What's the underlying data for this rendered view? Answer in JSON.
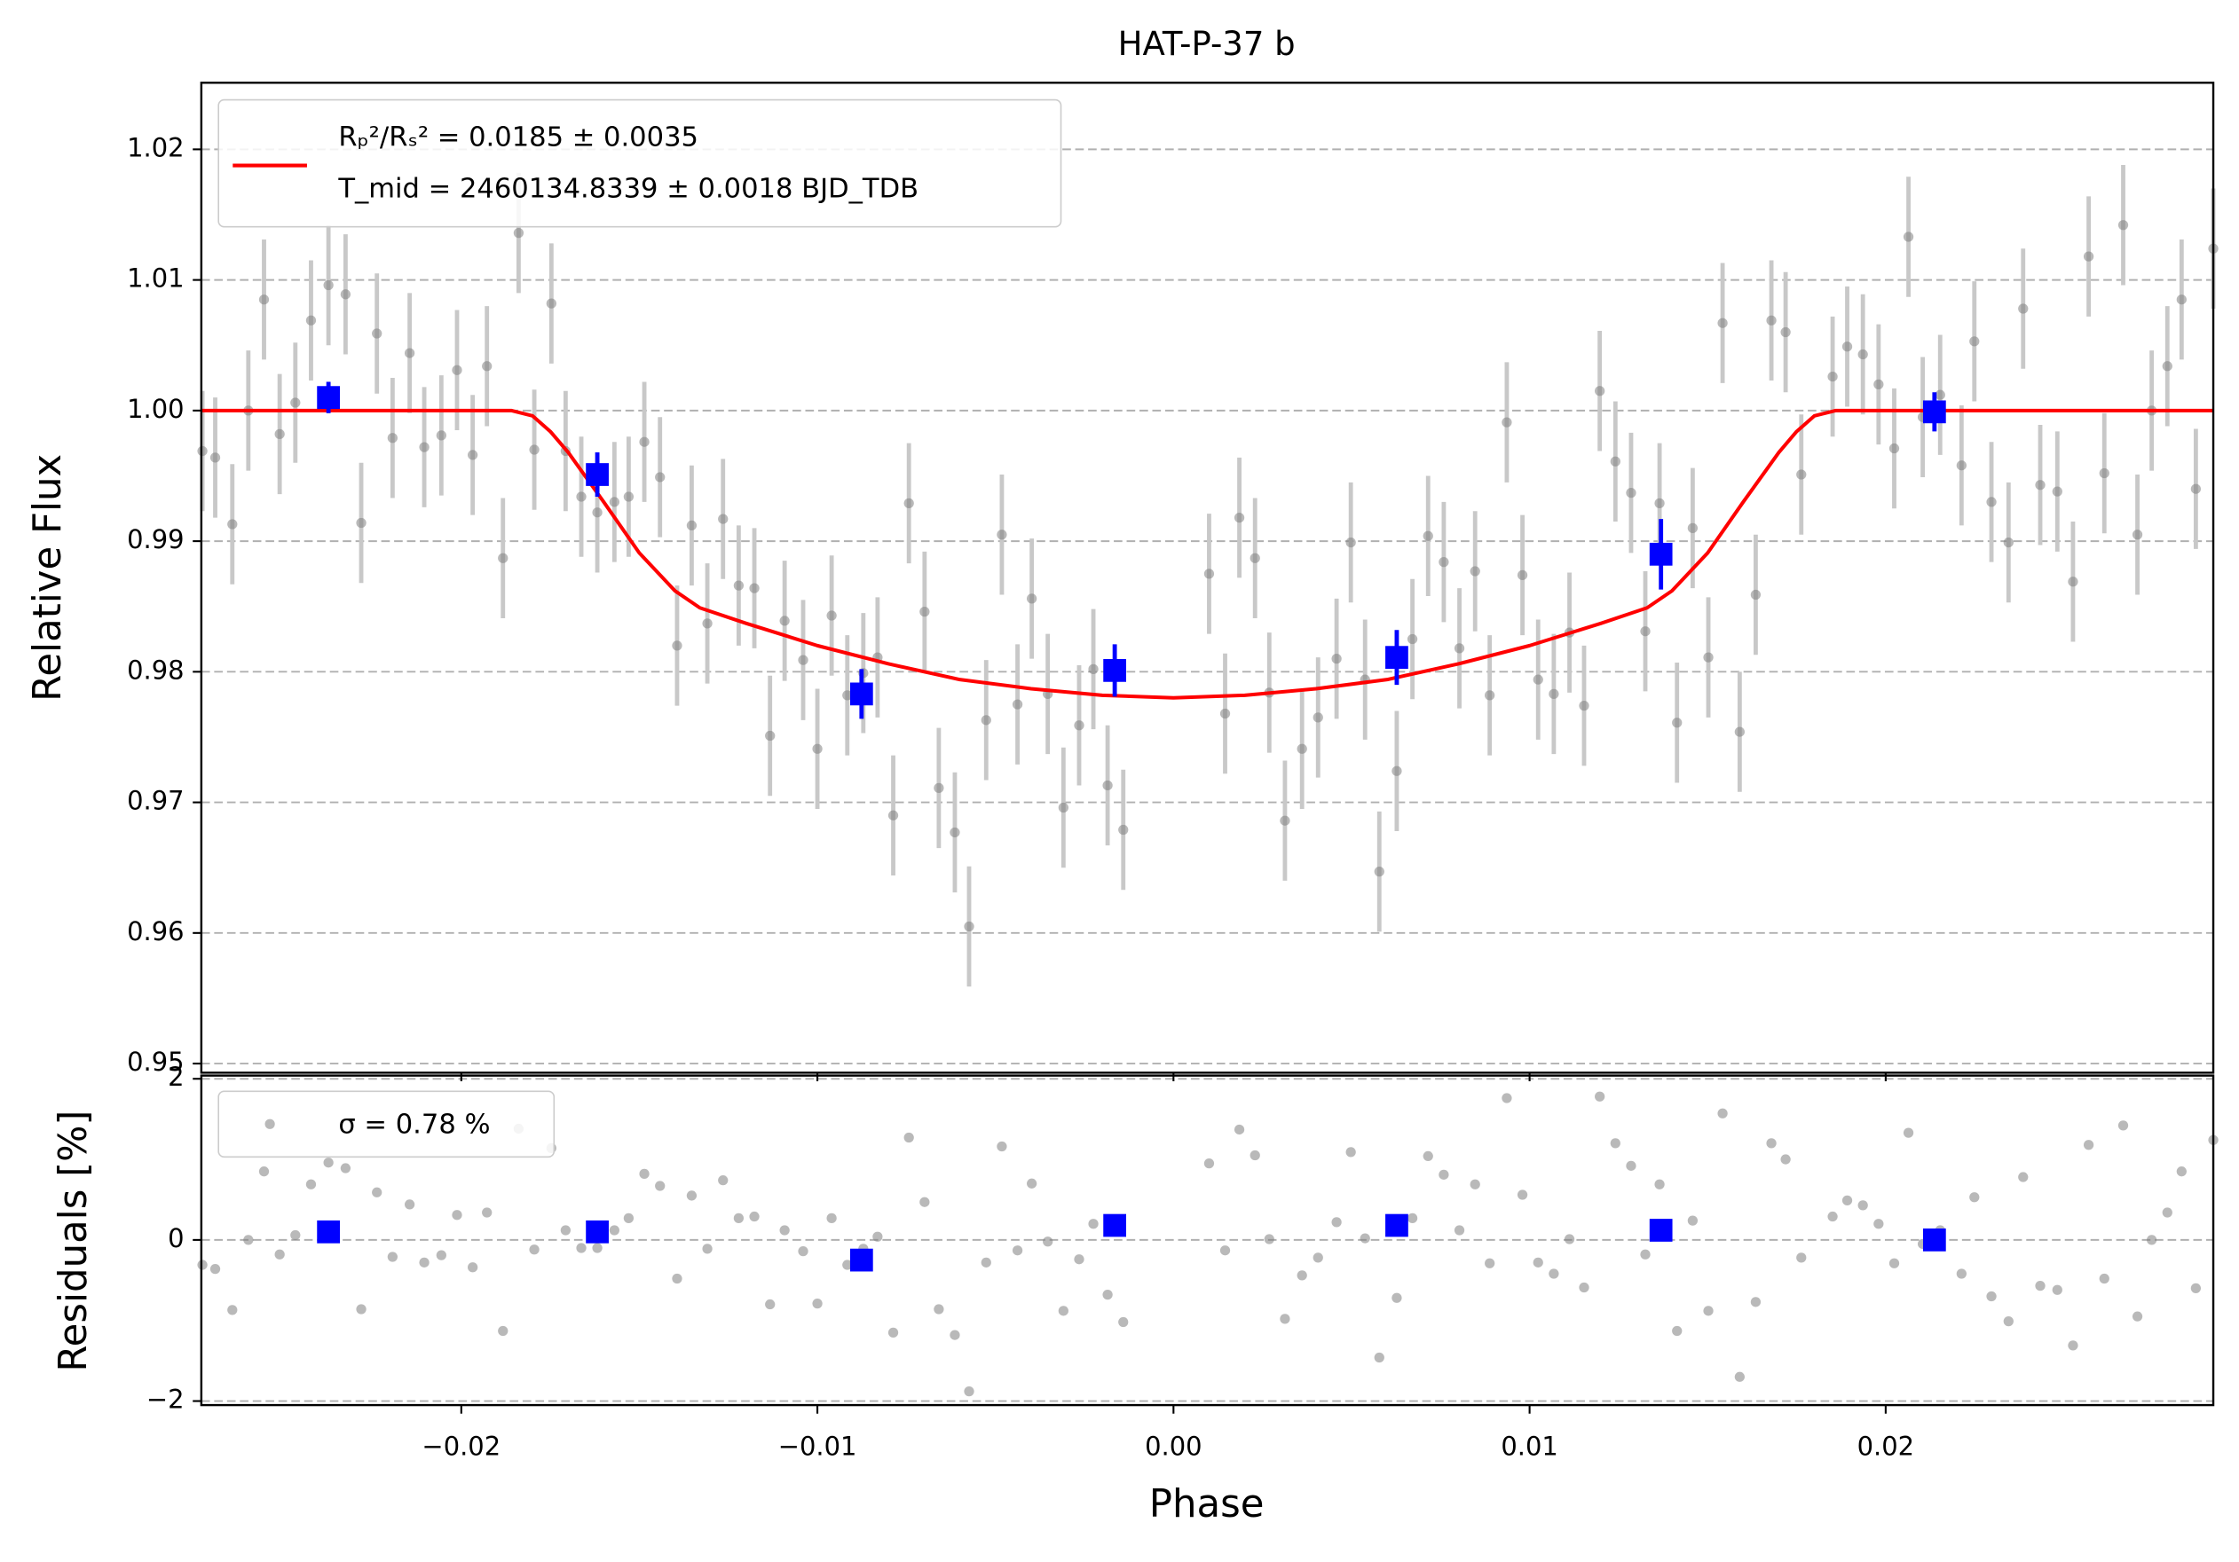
{
  "chart_data": [
    {
      "type": "scatter",
      "title": "HAT-P-37 b",
      "y_label": "Relative Flux",
      "ylim": [
        0.9493,
        1.0251
      ],
      "yticks": [
        0.95,
        0.96,
        0.97,
        0.98,
        0.99,
        {
          "value": 1.0,
          "label": "1.00"
        },
        1.01,
        1.02
      ],
      "grid": true,
      "series": [
        {
          "color": "#808080",
          "error": 0.0046,
          "x": [
            -0.02727,
            -0.02691,
            -0.02643,
            -0.02598,
            -0.02554,
            -0.0251,
            -0.02466,
            -0.02422,
            -0.02373,
            -0.02325,
            -0.02281,
            -0.02237,
            -0.02193,
            -0.02145,
            -0.02104,
            -0.02056,
            -0.02012,
            -0.01968,
            -0.01928,
            -0.01883,
            -0.01839,
            -0.01795,
            -0.01747,
            -0.01707,
            -0.01663,
            -0.01618,
            -0.0157,
            -0.0153,
            -0.01486,
            -0.01442,
            -0.01394,
            -0.01353,
            -0.01309,
            -0.01265,
            -0.01221,
            -0.01177,
            -0.01133,
            -0.01092,
            -0.0104,
            -0.01,
            -0.0096,
            -0.00916,
            -0.00871,
            -0.00831,
            -0.00787,
            -0.00743,
            -0.00699,
            -0.00659,
            -0.00614,
            -0.00574,
            -0.00526,
            -0.00482,
            -0.00438,
            -0.00398,
            -0.00353,
            -0.00309,
            -0.00265,
            -0.00225,
            -0.00185,
            -0.00141,
            0.001,
            0.00145,
            0.00185,
            0.00229,
            0.00269,
            0.00313,
            0.00361,
            0.00406,
            0.00458,
            0.00498,
            0.00538,
            0.00578,
            0.00627,
            0.00671,
            0.00715,
            0.00759,
            0.00803,
            0.00847,
            0.00888,
            0.00936,
            0.0098,
            0.01024,
            0.01068,
            0.01112,
            0.01153,
            0.01197,
            0.01241,
            0.01285,
            0.01325,
            0.01365,
            0.01414,
            0.01458,
            0.01502,
            0.01542,
            0.0159,
            0.01635,
            0.01679,
            0.01719,
            0.01763,
            0.01851,
            0.01892,
            0.01936,
            0.0198,
            0.02024,
            0.02064,
            0.02104,
            0.02153,
            0.02213,
            0.02249,
            0.02297,
            0.02345,
            0.02386,
            0.02434,
            0.02482,
            0.02526,
            0.0257,
            0.02614,
            0.02667,
            0.02707,
            0.02747,
            0.02791,
            0.02831,
            0.02871,
            0.0292
          ],
          "values": [
            0.9969,
            0.9964,
            0.9913,
            1.0,
            1.0085,
            0.9982,
            1.0006,
            1.0069,
            1.0096,
            1.0089,
            0.9914,
            1.0059,
            0.9979,
            1.0044,
            0.9972,
            0.9981,
            1.0031,
            0.9966,
            1.0034,
            0.9887,
            1.0136,
            0.997,
            1.0082,
            0.9969,
            0.9934,
            0.9922,
            0.993,
            0.9934,
            0.9976,
            0.9949,
            0.982,
            0.9912,
            0.9837,
            0.9917,
            0.9866,
            0.9864,
            0.9751,
            0.9839,
            0.9809,
            0.9741,
            0.9843,
            0.9782,
            0.9799,
            0.9811,
            0.969,
            0.9929,
            0.9846,
            0.9711,
            0.9677,
            0.9605,
            0.9763,
            0.9905,
            0.9775,
            0.9856,
            0.9783,
            0.9696,
            0.9759,
            0.9802,
            0.9713,
            0.9679,
            0.9875,
            0.9768,
            0.9918,
            0.9887,
            0.9784,
            0.9686,
            0.9741,
            0.9765,
            0.981,
            0.9899,
            0.9794,
            0.9647,
            0.9724,
            0.9825,
            0.9904,
            0.9884,
            0.9818,
            0.9877,
            0.9782,
            0.9991,
            0.9874,
            0.9794,
            0.9783,
            0.983,
            0.9774,
            1.0015,
            0.9961,
            0.9937,
            0.9831,
            0.9929,
            0.9761,
            0.991,
            0.9811,
            1.0067,
            0.9754,
            0.9859,
            1.0069,
            1.006,
            0.9951,
            1.0026,
            1.0049,
            1.0043,
            1.002,
            0.9971,
            1.0133,
            0.9995,
            1.0012,
            0.9958,
            1.0053,
            0.993,
            0.9899,
            1.0078,
            0.9943,
            0.9938,
            0.9869,
            1.0118,
            0.9952,
            1.0142,
            0.9905,
            1.0,
            1.0034,
            1.0085,
            0.994,
            1.0124
          ]
        },
        {
          "color": "#0000ff",
          "x": [
            -0.02373,
            -0.01618,
            -0.00876,
            -0.00165,
            0.00627,
            0.01369,
            0.02137
          ],
          "values": [
            1.001,
            0.9951,
            0.9783,
            0.9801,
            0.9811,
            0.989,
            0.9999
          ],
          "errors": [
            0.0012,
            0.0017,
            0.0019,
            0.002,
            0.0021,
            0.0027,
            0.0015
          ]
        },
        {
          "type": "line",
          "color": "#ff0000",
          "name": [
            "Rₚ²/Rₛ² = 0.0185 ± 0.0035",
            "T_mid = 2460134.8339 ± 0.0018 BJD_TDB"
          ],
          "x": [
            -0.0273,
            -0.0186,
            -0.018,
            -0.0175,
            -0.017,
            -0.016,
            -0.015,
            -0.014,
            -0.0133,
            -0.012,
            -0.01,
            -0.008,
            -0.006,
            -0.004,
            -0.002,
            0,
            0.002,
            0.004,
            0.006,
            0.008,
            0.01,
            0.012,
            0.0133,
            0.014,
            0.015,
            0.016,
            0.017,
            0.0175,
            0.018,
            0.0186,
            0.0292
          ],
          "values": [
            1.0,
            1.0,
            0.9996,
            0.9984,
            0.9968,
            0.993,
            0.9891,
            0.9862,
            0.9849,
            0.9837,
            0.982,
            0.9806,
            0.9794,
            0.9787,
            0.9782,
            0.978,
            0.9782,
            0.9787,
            0.9794,
            0.9806,
            0.982,
            0.9837,
            0.9849,
            0.9862,
            0.9891,
            0.993,
            0.9968,
            0.9984,
            0.9996,
            1.0,
            1.0
          ]
        }
      ]
    },
    {
      "type": "scatter",
      "x_label": "Phase",
      "y_label": "Residuals [%]",
      "xlim": [
        -0.0273,
        0.0292
      ],
      "xticks": [
        {
          "value": -0.02,
          "label": "−0.02"
        },
        {
          "value": -0.01,
          "label": "−0.01"
        },
        {
          "value": 0,
          "label": "0.00"
        },
        0.01,
        0.02
      ],
      "ylim": [
        -2.05,
        2.04
      ],
      "yticks": [
        {
          "value": -2,
          "label": "−2"
        },
        0,
        2
      ],
      "grid": true,
      "series": [
        {
          "name": "σ = 0.78 %",
          "color": "#808080",
          "values": [
            -0.31,
            -0.36,
            -0.87,
            0,
            0.85,
            -0.18,
            0.06,
            0.69,
            0.96,
            0.89,
            -0.86,
            0.59,
            -0.21,
            0.44,
            -0.28,
            -0.19,
            0.31,
            -0.34,
            0.34,
            -1.13,
            1.38,
            -0.12,
            1.14,
            0.12,
            -0.1,
            -0.1,
            0.12,
            0.27,
            0.82,
            0.67,
            -0.48,
            0.55,
            -0.11,
            0.74,
            0.27,
            0.29,
            -0.8,
            0.12,
            -0.14,
            -0.79,
            0.27,
            -0.31,
            -0.11,
            0.04,
            -1.15,
            1.27,
            0.47,
            -0.86,
            -1.18,
            -1.88,
            -0.28,
            1.16,
            -0.13,
            0.7,
            -0.02,
            -0.88,
            -0.24,
            0.2,
            -0.68,
            -1.02,
            0.95,
            -0.13,
            1.37,
            1.05,
            0.01,
            -0.98,
            -0.44,
            -0.22,
            0.22,
            1.09,
            0.02,
            -1.46,
            -0.72,
            0.27,
            1.04,
            0.81,
            0.12,
            0.69,
            -0.29,
            1.76,
            0.56,
            -0.28,
            -0.42,
            0.01,
            -0.59,
            1.78,
            1.2,
            0.92,
            -0.18,
            0.69,
            -1.13,
            0.24,
            -0.88,
            1.57,
            -1.7,
            -0.77,
            1.2,
            1.0,
            -0.22,
            0.29,
            0.49,
            0.43,
            0.2,
            -0.29,
            1.33,
            -0.05,
            0.12,
            -0.42,
            0.53,
            -0.7,
            -1.01,
            0.78,
            -0.57,
            -0.62,
            -1.31,
            1.18,
            -0.48,
            1.42,
            -0.95,
            0,
            0.34,
            0.85,
            -0.6,
            1.24
          ]
        },
        {
          "color": "#0000ff",
          "values": [
            0.1,
            0.1,
            -0.25,
            0.18,
            0.18,
            0.12,
            0.0
          ]
        }
      ]
    }
  ]
}
